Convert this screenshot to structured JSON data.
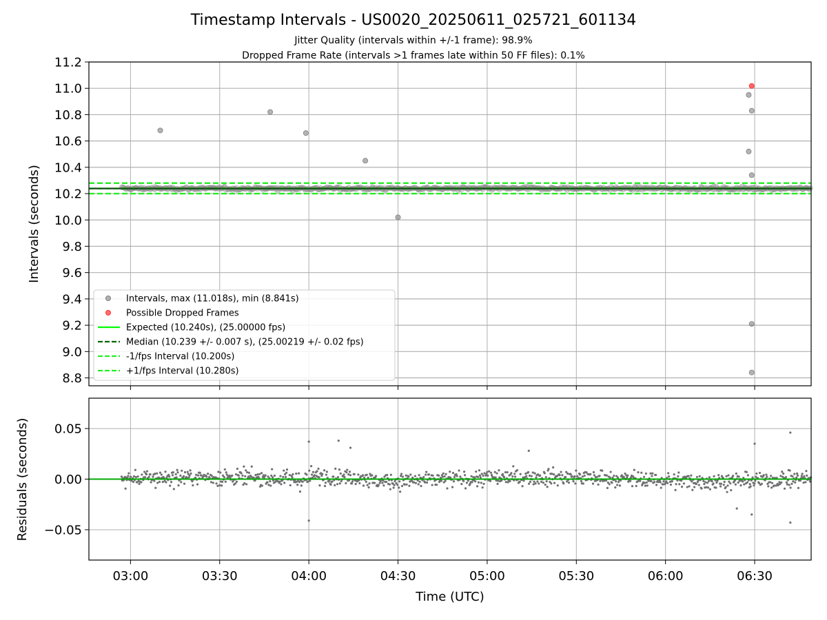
{
  "title": "Timestamp Intervals - US0020_20250611_025721_601134",
  "subtitle_1": "Jitter Quality (intervals within +/-1 frame): 98.9%",
  "subtitle_2": "Dropped Frame Rate (intervals >1 frames late within 50 FF files): 0.1%",
  "colors": {
    "interval_points": "#808080",
    "dropped_points": "#ff3333",
    "expected_line": "#00ff00",
    "median_line": "#006400",
    "bound_lines": "#22ee22",
    "residual_points": "#707070",
    "residual_zero_line": "#00aa00",
    "grid": "#b0b0b0"
  },
  "chart_data": [
    {
      "type": "scatter",
      "ylabel": "Intervals (seconds)",
      "xlim": [
        "02:46",
        "06:49"
      ],
      "ylim": [
        8.74,
        11.2
      ],
      "grid": true,
      "legend_position": "lower-left",
      "y_ticks": [
        "8.8",
        "9.0",
        "9.2",
        "9.4",
        "9.6",
        "9.8",
        "10.0",
        "10.2",
        "10.4",
        "10.6",
        "10.8",
        "11.0",
        "11.2"
      ],
      "legend": [
        "Intervals, max (11.018s), min (8.841s)",
        "Possible Dropped Frames",
        "Expected (10.240s), (25.00000 fps)",
        "Median (10.239 +/- 0.007 s), (25.00219 +/- 0.02 fps)",
        "-1/fps Interval (10.200s)",
        "+1/fps Interval (10.280s)"
      ],
      "reference_lines": {
        "expected": 10.24,
        "median": 10.239,
        "lower_bound": 10.2,
        "upper_bound": 10.28
      },
      "outliers": [
        {
          "t": "03:10",
          "v": 10.68
        },
        {
          "t": "03:47",
          "v": 10.82
        },
        {
          "t": "03:59",
          "v": 10.66
        },
        {
          "t": "04:19",
          "v": 10.45
        },
        {
          "t": "04:30",
          "v": 10.02
        },
        {
          "t": "06:28",
          "v": 10.95
        },
        {
          "t": "06:29",
          "v": 10.83
        },
        {
          "t": "06:28",
          "v": 10.52
        },
        {
          "t": "06:29",
          "v": 10.34
        },
        {
          "t": "06:29",
          "v": 9.21
        },
        {
          "t": "06:29",
          "v": 8.841
        }
      ],
      "dropped_frames": [
        {
          "t": "06:29",
          "v": 11.018
        }
      ],
      "band_series": {
        "start": "02:57",
        "end": "06:49",
        "center": 10.239,
        "spread": 0.02
      }
    },
    {
      "type": "scatter",
      "ylabel": "Residuals (seconds)",
      "xlabel": "Time (UTC)",
      "xlim": [
        "02:46",
        "06:49"
      ],
      "ylim": [
        -0.08,
        0.08
      ],
      "grid": true,
      "y_ticks": [
        "−0.05",
        "0.00",
        "0.05"
      ],
      "x_ticks": [
        "03:00",
        "03:30",
        "04:00",
        "04:30",
        "05:00",
        "05:30",
        "06:00",
        "06:30"
      ],
      "residual_series": {
        "start": "02:57",
        "end": "06:49",
        "spread": 0.008
      },
      "residual_outliers": [
        {
          "t": "04:00",
          "v": 0.037
        },
        {
          "t": "04:00",
          "v": -0.041
        },
        {
          "t": "04:10",
          "v": 0.038
        },
        {
          "t": "04:14",
          "v": 0.031
        },
        {
          "t": "05:14",
          "v": 0.028
        },
        {
          "t": "06:30",
          "v": 0.035
        },
        {
          "t": "06:29",
          "v": -0.035
        },
        {
          "t": "06:42",
          "v": 0.046
        },
        {
          "t": "06:42",
          "v": -0.043
        },
        {
          "t": "06:24",
          "v": -0.029
        }
      ]
    }
  ]
}
